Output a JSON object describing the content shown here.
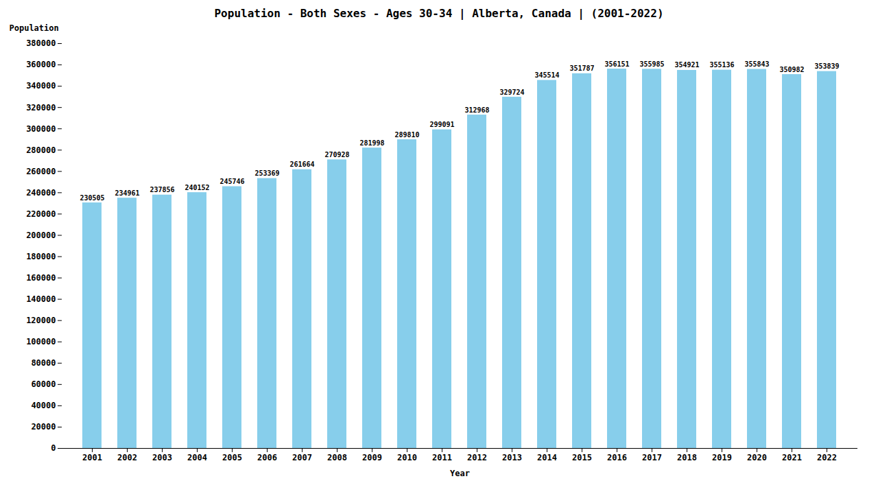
{
  "chart_data": {
    "type": "bar",
    "title": "Population - Both Sexes - Ages 30-34 | Alberta, Canada |  (2001-2022)",
    "xlabel": "Year",
    "ylabel": "Population",
    "categories": [
      "2001",
      "2002",
      "2003",
      "2004",
      "2005",
      "2006",
      "2007",
      "2008",
      "2009",
      "2010",
      "2011",
      "2012",
      "2013",
      "2014",
      "2015",
      "2016",
      "2017",
      "2018",
      "2019",
      "2020",
      "2021",
      "2022"
    ],
    "values": [
      230505,
      234961,
      237856,
      240152,
      245746,
      253369,
      261664,
      270928,
      281998,
      289810,
      299091,
      312968,
      329724,
      345514,
      351787,
      356151,
      355985,
      354921,
      355136,
      355843,
      350982,
      353839
    ],
    "color": "#87CEEB",
    "ylim": [
      0,
      380000
    ],
    "yticks": [
      0,
      20000,
      40000,
      60000,
      80000,
      100000,
      120000,
      140000,
      160000,
      180000,
      200000,
      220000,
      240000,
      260000,
      280000,
      300000,
      320000,
      340000,
      360000,
      380000
    ],
    "grid": false,
    "data_labels": true
  }
}
